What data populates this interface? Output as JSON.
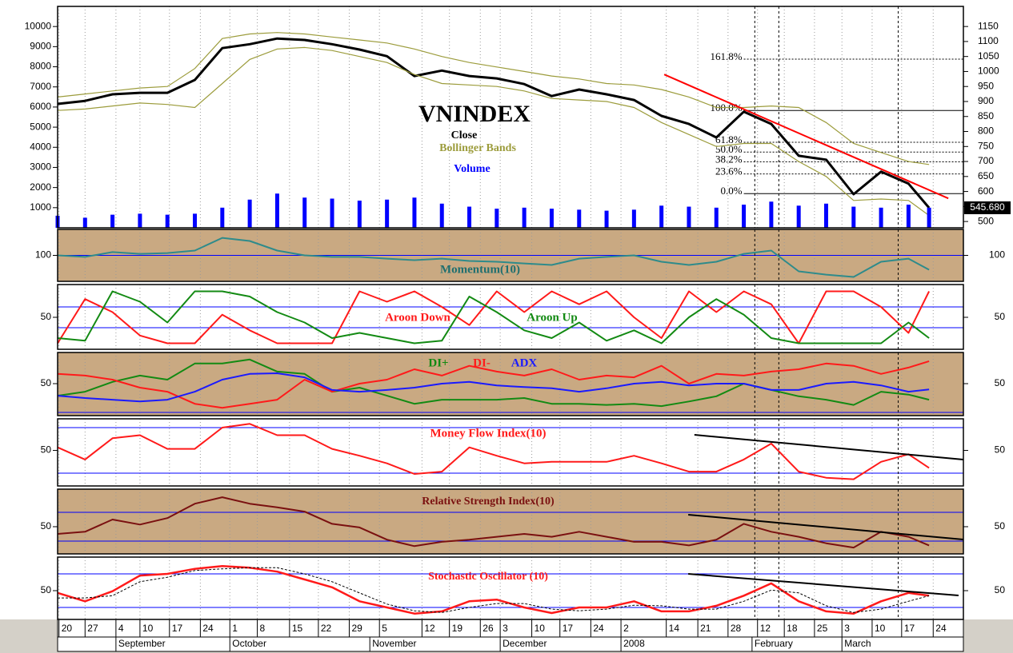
{
  "x_axis": {
    "x": [
      0,
      4,
      8,
      12,
      16,
      20,
      24,
      28,
      32,
      36,
      40,
      44,
      48,
      52,
      56,
      60,
      64,
      68,
      72,
      76,
      80,
      84,
      88,
      92,
      96,
      100,
      104,
      108,
      112,
      116,
      120,
      124,
      127
    ],
    "xlim": [
      0,
      132
    ],
    "xticks": [
      {
        "value": 0.2,
        "label": "20"
      },
      {
        "value": 4,
        "label": "27"
      },
      {
        "value": 8.5,
        "label": "4"
      },
      {
        "value": 12,
        "label": "10"
      },
      {
        "value": 16.3,
        "label": "17"
      },
      {
        "value": 20.8,
        "label": "24"
      },
      {
        "value": 25.1,
        "label": "1"
      },
      {
        "value": 29.1,
        "label": "8"
      },
      {
        "value": 33.8,
        "label": "15"
      },
      {
        "value": 38,
        "label": "22"
      },
      {
        "value": 42.5,
        "label": "29"
      },
      {
        "value": 46.9,
        "label": "5"
      },
      {
        "value": 53.1,
        "label": "12"
      },
      {
        "value": 57.1,
        "label": "19"
      },
      {
        "value": 61.6,
        "label": "26"
      },
      {
        "value": 64.5,
        "label": "3"
      },
      {
        "value": 69.1,
        "label": "10"
      },
      {
        "value": 73.2,
        "label": "17"
      },
      {
        "value": 77.7,
        "label": "24"
      },
      {
        "value": 82.1,
        "label": "2"
      },
      {
        "value": 88.7,
        "label": "14"
      },
      {
        "value": 93.3,
        "label": "21"
      },
      {
        "value": 97.7,
        "label": "28"
      },
      {
        "value": 102,
        "label": "12"
      },
      {
        "value": 105.9,
        "label": "18"
      },
      {
        "value": 110.3,
        "label": "25"
      },
      {
        "value": 114.3,
        "label": "3"
      },
      {
        "value": 118.7,
        "label": "10"
      },
      {
        "value": 123,
        "label": "17"
      },
      {
        "value": 127.6,
        "label": "24"
      }
    ],
    "months": [
      {
        "value": 8.5,
        "label": "September"
      },
      {
        "value": 25.1,
        "label": "October"
      },
      {
        "value": 45.5,
        "label": "November"
      },
      {
        "value": 64.5,
        "label": "December"
      },
      {
        "value": 82.1,
        "label": "2008"
      },
      {
        "value": 101.2,
        "label": "February"
      },
      {
        "value": 114.3,
        "label": "March"
      }
    ],
    "vlines": [
      101.6,
      105.1,
      122.5
    ]
  },
  "chart_data": [
    {
      "type": "line",
      "title": "VNINDEX",
      "background": "#ffffff",
      "ylim": [
        0,
        11000
      ],
      "yticks": [
        1000,
        2000,
        3000,
        4000,
        5000,
        6000,
        7000,
        8000,
        9000,
        10000
      ],
      "y2lim": [
        479,
        1217
      ],
      "y2ticks": [
        500,
        550,
        600,
        650,
        700,
        750,
        800,
        850,
        900,
        950,
        1000,
        1050,
        1100,
        1150
      ],
      "series": [
        {
          "name": "Close",
          "color": "#000000",
          "axis": "y2",
          "width": 3,
          "values": [
            892,
            902,
            924,
            929,
            929,
            972,
            1078,
            1091,
            1110,
            1105,
            1091,
            1073,
            1051,
            985,
            1003,
            985,
            977,
            958,
            918,
            940,
            924,
            905,
            852,
            825,
            780,
            866,
            825,
            719,
            706,
            591,
            666,
            626,
            545.68
          ],
          "value_labels": [
            null,
            null,
            null,
            null,
            null,
            null,
            null,
            null,
            null,
            null,
            null,
            null,
            null,
            null,
            null,
            null,
            null,
            null,
            null,
            null,
            null,
            null,
            null,
            null,
            null,
            null,
            null,
            null,
            null,
            null,
            null,
            null,
            "545.680"
          ]
        },
        {
          "name": "Bollinger Bands",
          "type": "band",
          "color": "#9c9c3c",
          "axis": "y2",
          "upper": [
            915,
            925,
            935,
            945,
            950,
            1010,
            1110,
            1125,
            1130,
            1125,
            1115,
            1105,
            1095,
            1075,
            1050,
            1030,
            1015,
            1000,
            985,
            975,
            960,
            955,
            940,
            915,
            880,
            880,
            885,
            880,
            830,
            760,
            730,
            700,
            690
          ],
          "lower": [
            870,
            875,
            885,
            895,
            890,
            880,
            960,
            1040,
            1075,
            1080,
            1070,
            1050,
            1030,
            990,
            960,
            955,
            950,
            935,
            910,
            905,
            900,
            880,
            830,
            790,
            750,
            760,
            760,
            700,
            650,
            570,
            575,
            570,
            520
          ]
        },
        {
          "name": "Volume",
          "type": "bar",
          "color": "#0000ff",
          "axis": "y",
          "values": [
            600,
            500,
            650,
            700,
            650,
            700,
            1000,
            1400,
            1700,
            1500,
            1450,
            1350,
            1400,
            1500,
            1200,
            1050,
            950,
            1000,
            950,
            900,
            850,
            900,
            1100,
            1050,
            1000,
            1150,
            1300,
            1100,
            1200,
            1050,
            1000,
            1150,
            1000
          ]
        }
      ],
      "fib_levels": [
        {
          "label": "161.8%",
          "value": 1041.2,
          "style": "dotted"
        },
        {
          "label": "100.0%",
          "value": 870,
          "style": "solid"
        },
        {
          "label": "61.8%",
          "value": 764.2,
          "style": "dotted"
        },
        {
          "label": "50.0%",
          "value": 731.5,
          "style": "dotted"
        },
        {
          "label": "38.2%",
          "value": 698.8,
          "style": "dotted"
        },
        {
          "label": "23.6%",
          "value": 658.4,
          "style": "dotted"
        },
        {
          "label": "0.0%",
          "value": 593,
          "style": "solid"
        }
      ],
      "fib_x_start": 100,
      "trendlines": [
        {
          "x": [
            88.4,
            129.8
          ],
          "y": [
            990,
            577
          ],
          "color": "#ff0000",
          "axis": "y2"
        }
      ]
    },
    {
      "type": "line",
      "title": "Momentum(10)",
      "title_color": "#1f6f6f",
      "background": "#c9a982",
      "ylim": [
        80,
        120
      ],
      "yticks": [
        100
      ],
      "hlines": [
        100
      ],
      "series": [
        {
          "color": "#2e8b8b",
          "values": [
            100,
            98.8,
            102.5,
            101.2,
            101.8,
            103.7,
            113.5,
            111.1,
            103.7,
            100,
            98.8,
            98.8,
            97.5,
            96.3,
            97.5,
            95.7,
            95.1,
            93.8,
            92.6,
            97.5,
            98.8,
            100,
            95.1,
            92.6,
            95.1,
            101.2,
            103.7,
            87.7,
            85.2,
            83.4,
            95.1,
            97.5,
            88.9
          ]
        }
      ]
    },
    {
      "type": "line",
      "background": "#ffffff",
      "ylim": [
        -11.5,
        113
      ],
      "yticks": [
        50
      ],
      "hlines": [
        30,
        70
      ],
      "series": [
        {
          "name": "Aroon Down",
          "color": "#ff1a1a",
          "values": [
            0,
            85,
            60,
            15,
            0,
            0,
            55,
            25,
            0,
            0,
            0,
            100,
            80,
            100,
            70,
            35,
            100,
            60,
            100,
            75,
            100,
            50,
            10,
            100,
            60,
            100,
            75,
            0,
            100,
            100,
            70,
            20,
            100
          ]
        },
        {
          "name": "Aroon Up",
          "color": "#138a13",
          "values": [
            10,
            5,
            100,
            80,
            40,
            100,
            100,
            90,
            60,
            40,
            10,
            20,
            10,
            0,
            5,
            90,
            60,
            25,
            10,
            40,
            5,
            25,
            0,
            50,
            85,
            55,
            10,
            0,
            0,
            0,
            0,
            40,
            10
          ]
        }
      ]
    },
    {
      "type": "line",
      "background": "#c9a982",
      "ylim": [
        -5.6,
        104.2
      ],
      "yticks": [
        50
      ],
      "hlines": [
        0
      ],
      "series": [
        {
          "name": "DI+",
          "color": "#138a13",
          "values": [
            29,
            36,
            53,
            64,
            57,
            85,
            85,
            92,
            71,
            67,
            36,
            43,
            29,
            15,
            22,
            22,
            22,
            25,
            15,
            15,
            13,
            15,
            11,
            19,
            28,
            50,
            39,
            28,
            22,
            13,
            36,
            31,
            22
          ]
        },
        {
          "name": "DI-",
          "color": "#ff1a1a",
          "values": [
            67,
            64,
            57,
            43,
            36,
            15,
            8,
            15,
            22,
            57,
            36,
            50,
            57,
            75,
            64,
            81,
            71,
            64,
            75,
            57,
            64,
            61,
            81,
            50,
            67,
            64,
            71,
            75,
            85,
            81,
            67,
            78,
            89
          ]
        },
        {
          "name": "ADX",
          "color": "#1a1aff",
          "values": [
            29,
            25,
            22,
            19,
            22,
            36,
            57,
            67,
            68,
            61,
            39,
            36,
            39,
            43,
            50,
            53,
            47,
            44,
            42,
            36,
            42,
            50,
            53,
            47,
            50,
            50,
            39,
            39,
            50,
            53,
            47,
            36,
            40
          ]
        }
      ]
    },
    {
      "type": "line",
      "title": "Money Flow Index(10)",
      "title_color": "#ff1a1a",
      "background": "#ffffff",
      "ylim": [
        3.2,
        91.6
      ],
      "yticks": [
        50
      ],
      "hlines": [
        20,
        80
      ],
      "series": [
        {
          "color": "#ff1a1a",
          "values": [
            54,
            38,
            66,
            70,
            52,
            52,
            80,
            85,
            70,
            70,
            52,
            43,
            33,
            19,
            22,
            54,
            43,
            33,
            35,
            35,
            35,
            43,
            33,
            22,
            22,
            38,
            59,
            22,
            14,
            12,
            35,
            45,
            27
          ]
        }
      ],
      "trendlines": [
        {
          "x": [
            92.8,
            132
          ],
          "y": [
            70.5,
            37.9
          ],
          "color": "#000000"
        }
      ]
    },
    {
      "type": "line",
      "title": "Relative Strength Index(10)",
      "title_color": "#7a1010",
      "background": "#c9a982",
      "ylim": [
        12.2,
        102.2
      ],
      "yticks": [
        50
      ],
      "hlines": [
        30,
        70
      ],
      "series": [
        {
          "color": "#7a1010",
          "values": [
            40,
            43,
            60,
            53,
            62,
            82,
            91,
            82,
            77,
            71,
            54,
            49,
            32,
            23,
            29,
            32,
            36,
            40,
            36,
            43,
            36,
            29,
            29,
            24,
            32,
            54,
            43,
            36,
            27,
            21,
            43,
            36,
            24
          ]
        }
      ],
      "trendlines": [
        {
          "x": [
            91.9,
            132
          ],
          "y": [
            66.7,
            32.2
          ],
          "color": "#000000"
        }
      ]
    },
    {
      "type": "line",
      "title": "Stochastic Oscillator (10)",
      "title_color": "#ff1a1a",
      "background": "#ffffff",
      "ylim": [
        -1.4,
        110
      ],
      "yticks": [
        50
      ],
      "hlines": [
        20,
        80
      ],
      "series": [
        {
          "color": "#ff1a1a",
          "width": 2.5,
          "values": [
            46,
            31,
            49,
            77,
            80,
            89,
            94,
            91,
            84,
            70,
            56,
            31,
            20,
            9,
            13,
            31,
            34,
            20,
            10,
            20,
            20,
            31,
            13,
            13,
            23,
            41,
            63,
            31,
            13,
            9,
            31,
            46,
            41
          ]
        },
        {
          "color": "#000000",
          "width": 1,
          "dash": true,
          "values": [
            37,
            37,
            41,
            66,
            74,
            86,
            89,
            91,
            91,
            80,
            66,
            46,
            26,
            14,
            11,
            20,
            27,
            27,
            17,
            14,
            17,
            24,
            23,
            17,
            17,
            31,
            51,
            46,
            23,
            11,
            17,
            31,
            41
          ]
        }
      ],
      "trendlines": [
        {
          "x": [
            91.9,
            131.3
          ],
          "y": [
            80,
            41.4
          ],
          "color": "#000000"
        }
      ]
    }
  ]
}
